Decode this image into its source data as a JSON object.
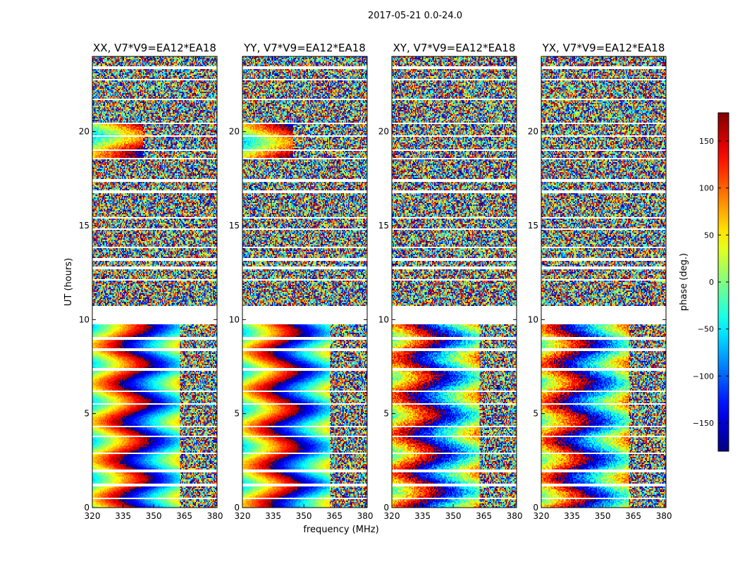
{
  "figure": {
    "suptitle": "2017-05-21 0.0-24.0",
    "ylabel": "UT (hours)",
    "xlabel": "frequency (MHz)"
  },
  "colorbar": {
    "label": "phase (deg.)",
    "range": [
      -180,
      180
    ],
    "ticks": [
      -150,
      -100,
      -50,
      0,
      50,
      100,
      150
    ],
    "tick_labels": [
      "−150",
      "−100",
      "−50",
      "0",
      "50",
      "100",
      "150"
    ],
    "colormap": "jet"
  },
  "chart_data": [
    {
      "type": "heatmap",
      "title": "XX, V7*V9=EA12*EA18",
      "xlim": [
        320,
        381
      ],
      "ylim": [
        0,
        24
      ],
      "xticks": [
        320,
        335,
        350,
        365,
        380
      ],
      "yticks": [
        0,
        5,
        10,
        15,
        20
      ],
      "value": "phase (deg.)",
      "value_range": [
        -180,
        180
      ],
      "flagged_hours": [
        [
          9.75,
          10.7
        ]
      ]
    },
    {
      "type": "heatmap",
      "title": "YY, V7*V9=EA12*EA18",
      "xlim": [
        320,
        381
      ],
      "ylim": [
        0,
        24
      ],
      "xticks": [
        320,
        335,
        350,
        365,
        380
      ],
      "yticks": [
        0,
        5,
        10,
        15,
        20
      ],
      "value": "phase (deg.)",
      "value_range": [
        -180,
        180
      ],
      "flagged_hours": [
        [
          9.75,
          10.7
        ]
      ]
    },
    {
      "type": "heatmap",
      "title": "XY, V7*V9=EA12*EA18",
      "xlim": [
        320,
        381
      ],
      "ylim": [
        0,
        24
      ],
      "xticks": [
        320,
        335,
        350,
        365,
        380
      ],
      "yticks": [
        0,
        5,
        10,
        15,
        20
      ],
      "value": "phase (deg.)",
      "value_range": [
        -180,
        180
      ],
      "flagged_hours": [
        [
          9.75,
          10.7
        ]
      ]
    },
    {
      "type": "heatmap",
      "title": "YX, V7*V9=EA12*EA18",
      "xlim": [
        320,
        381
      ],
      "ylim": [
        0,
        24
      ],
      "xticks": [
        320,
        335,
        350,
        365,
        380
      ],
      "yticks": [
        0,
        5,
        10,
        15,
        20
      ],
      "value": "phase (deg.)",
      "value_range": [
        -180,
        180
      ],
      "flagged_hours": [
        [
          9.75,
          10.7
        ]
      ]
    }
  ]
}
